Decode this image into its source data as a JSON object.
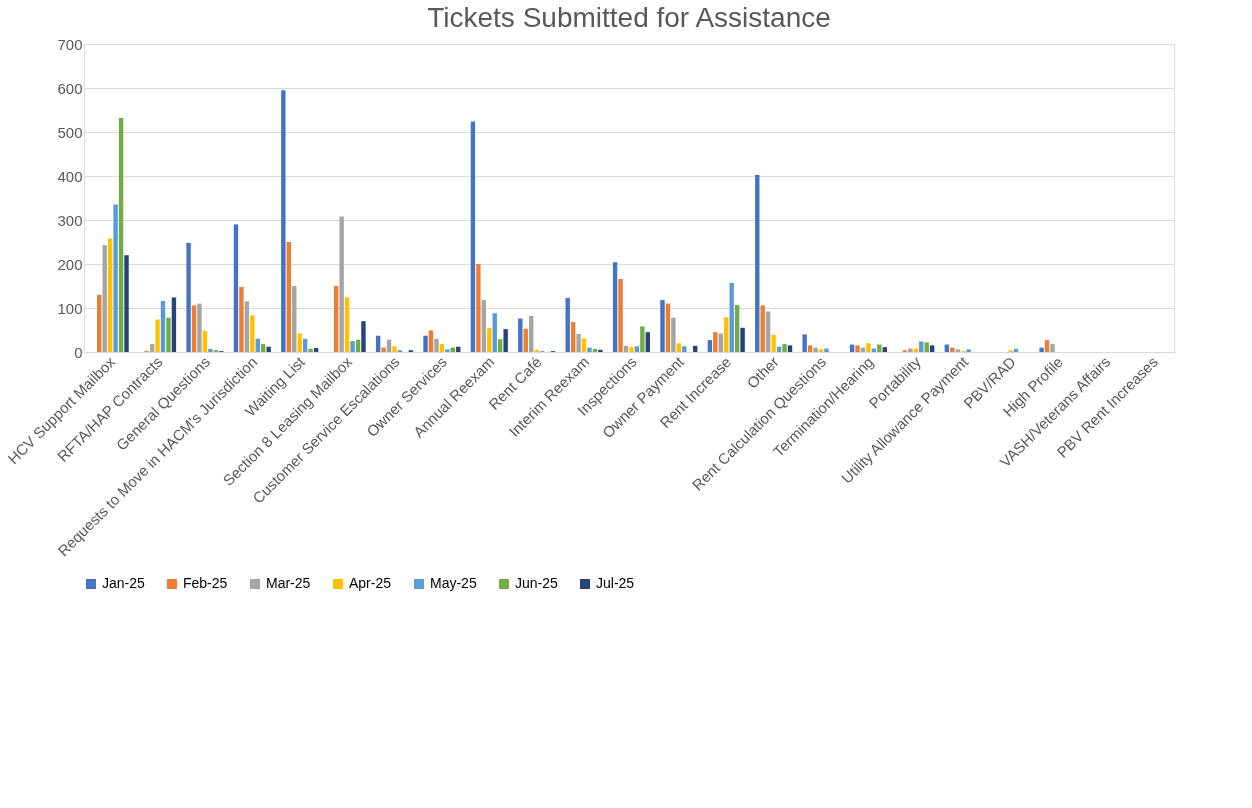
{
  "chart_data": {
    "type": "bar",
    "title": "Tickets Submitted for Assistance",
    "categories": [
      "HCV Support Mailbox",
      "RFTA/HAP Contracts",
      "General Questions",
      "Requests to Move in HACM's Jurisdiction",
      "Waiting List",
      "Section 8 Leasing Mailbox",
      "Customer Service Escalations",
      "Owner Services",
      "Annual Reexam",
      "Rent Café",
      "Interim Reexam",
      "Inspections",
      "Owner Payment",
      "Rent Increase",
      "Other",
      "Rent Calculation Questions",
      "Termination/Hearing",
      "Portability",
      "Utility Allowance Payment",
      "PBV/RAD",
      "High Profile",
      "VASH/Veterans Affairs",
      "PBV Rent Increases"
    ],
    "series": [
      {
        "name": "Jan-25",
        "color": "#4472c4",
        "values": [
          0,
          0,
          248,
          290,
          595,
          0,
          37,
          37,
          524,
          76,
          123,
          204,
          118,
          27,
          402,
          40,
          17,
          0,
          17,
          0,
          10,
          0,
          0
        ]
      },
      {
        "name": "Feb-25",
        "color": "#ed7d31",
        "values": [
          130,
          2,
          106,
          148,
          250,
          150,
          10,
          49,
          200,
          53,
          68,
          166,
          110,
          45,
          106,
          15,
          15,
          4,
          10,
          0,
          27,
          0,
          0
        ]
      },
      {
        "name": "Mar-25",
        "color": "#a5a5a5",
        "values": [
          243,
          18,
          110,
          115,
          150,
          308,
          28,
          30,
          118,
          82,
          41,
          14,
          78,
          42,
          92,
          10,
          10,
          8,
          6,
          0,
          18,
          0,
          0
        ]
      },
      {
        "name": "Apr-25",
        "color": "#ffc000",
        "values": [
          258,
          74,
          48,
          83,
          42,
          124,
          13,
          18,
          54,
          5,
          31,
          11,
          20,
          79,
          39,
          6,
          20,
          8,
          2,
          4,
          0,
          0,
          0
        ]
      },
      {
        "name": "May-25",
        "color": "#5b9bd5",
        "values": [
          335,
          116,
          7,
          30,
          30,
          25,
          4,
          6,
          88,
          2,
          10,
          13,
          13,
          157,
          12,
          8,
          8,
          24,
          6,
          7,
          0,
          0,
          0
        ]
      },
      {
        "name": "Jun-25",
        "color": "#70ad47",
        "values": [
          532,
          78,
          4,
          18,
          7,
          28,
          0,
          10,
          29,
          0,
          7,
          58,
          0,
          107,
          18,
          0,
          17,
          22,
          0,
          0,
          0,
          0,
          0
        ]
      },
      {
        "name": "Jul-25",
        "color": "#264478",
        "values": [
          220,
          124,
          2,
          12,
          9,
          70,
          4,
          12,
          52,
          2,
          5,
          45,
          14,
          55,
          15,
          0,
          11,
          15,
          0,
          0,
          0,
          0,
          0
        ]
      }
    ],
    "ylim": [
      0,
      700
    ],
    "yticks": [
      0,
      100,
      200,
      300,
      400,
      500,
      600,
      700
    ],
    "grid": "y",
    "legend": "bottom"
  }
}
